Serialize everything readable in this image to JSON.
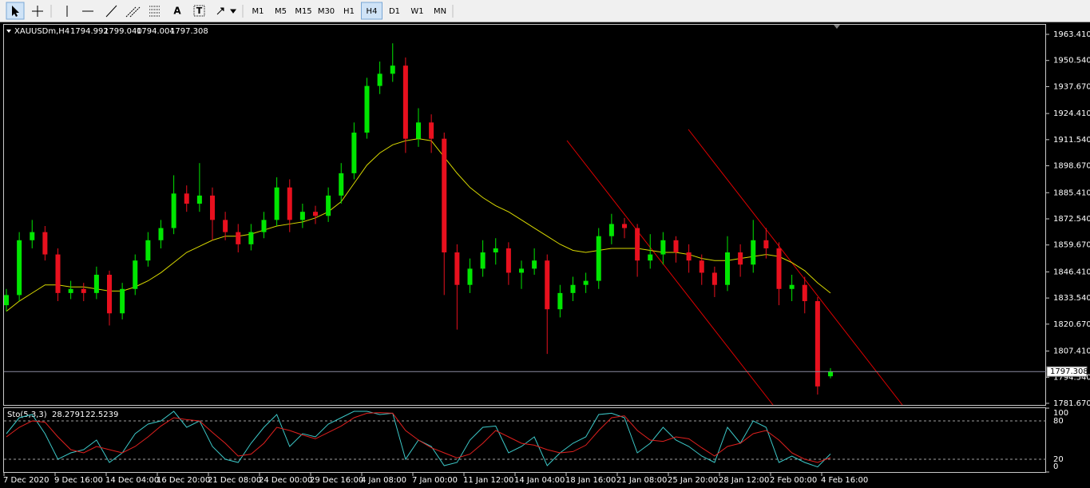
{
  "toolbar": {
    "tools": [
      "A",
      "T"
    ],
    "timeframes": [
      "M1",
      "M5",
      "M15",
      "M30",
      "H1",
      "H4",
      "D1",
      "W1",
      "MN"
    ],
    "active_timeframe": "H4"
  },
  "chart_data": {
    "type": "candlestick",
    "title": "XAUUSDm,H4",
    "quote_labels": [
      "1794.992",
      "1799.040",
      "1794.004",
      "1797.308"
    ],
    "colors": {
      "up": "#00e600",
      "down": "#e8101e",
      "background": "#000000",
      "price_line": "#8a8aa0"
    },
    "candles": [
      [
        1830,
        1838,
        1827,
        1835
      ],
      [
        1835,
        1866,
        1832,
        1862
      ],
      [
        1862,
        1872,
        1858,
        1866
      ],
      [
        1866,
        1869,
        1852,
        1855
      ],
      [
        1855,
        1858,
        1832,
        1836
      ],
      [
        1836,
        1842,
        1833,
        1838
      ],
      [
        1838,
        1841,
        1832,
        1836
      ],
      [
        1836,
        1849,
        1833,
        1845
      ],
      [
        1845,
        1847,
        1820,
        1826
      ],
      [
        1826,
        1841,
        1823,
        1838
      ],
      [
        1838,
        1855,
        1835,
        1852
      ],
      [
        1852,
        1866,
        1849,
        1862
      ],
      [
        1862,
        1872,
        1858,
        1868
      ],
      [
        1868,
        1894,
        1865,
        1885
      ],
      [
        1885,
        1889,
        1876,
        1880
      ],
      [
        1880,
        1900,
        1876,
        1884
      ],
      [
        1884,
        1888,
        1862,
        1872
      ],
      [
        1872,
        1876,
        1862,
        1866
      ],
      [
        1866,
        1870,
        1856,
        1860
      ],
      [
        1860,
        1870,
        1857,
        1866
      ],
      [
        1866,
        1876,
        1863,
        1872
      ],
      [
        1872,
        1893,
        1869,
        1888
      ],
      [
        1888,
        1892,
        1866,
        1872
      ],
      [
        1872,
        1880,
        1868,
        1876
      ],
      [
        1876,
        1879,
        1870,
        1874
      ],
      [
        1874,
        1888,
        1871,
        1884
      ],
      [
        1884,
        1900,
        1880,
        1895
      ],
      [
        1895,
        1920,
        1892,
        1915
      ],
      [
        1915,
        1942,
        1912,
        1938
      ],
      [
        1938,
        1950,
        1934,
        1944
      ],
      [
        1944,
        1959,
        1940,
        1948
      ],
      [
        1948,
        1952,
        1905,
        1912
      ],
      [
        1912,
        1927,
        1908,
        1920
      ],
      [
        1920,
        1924,
        1905,
        1912
      ],
      [
        1912,
        1915,
        1835,
        1856
      ],
      [
        1856,
        1860,
        1818,
        1840
      ],
      [
        1840,
        1853,
        1836,
        1848
      ],
      [
        1848,
        1862,
        1844,
        1856
      ],
      [
        1856,
        1863,
        1850,
        1858
      ],
      [
        1858,
        1861,
        1840,
        1846
      ],
      [
        1846,
        1852,
        1838,
        1848
      ],
      [
        1848,
        1858,
        1845,
        1852
      ],
      [
        1852,
        1855,
        1806,
        1828
      ],
      [
        1828,
        1840,
        1824,
        1836
      ],
      [
        1836,
        1844,
        1832,
        1840
      ],
      [
        1840,
        1846,
        1836,
        1842
      ],
      [
        1842,
        1868,
        1838,
        1864
      ],
      [
        1864,
        1875,
        1860,
        1870
      ],
      [
        1870,
        1873,
        1863,
        1868
      ],
      [
        1868,
        1870,
        1844,
        1852
      ],
      [
        1852,
        1865,
        1848,
        1855
      ],
      [
        1855,
        1866,
        1850,
        1862
      ],
      [
        1862,
        1864,
        1851,
        1856
      ],
      [
        1856,
        1860,
        1846,
        1852
      ],
      [
        1852,
        1855,
        1840,
        1846
      ],
      [
        1846,
        1849,
        1834,
        1840
      ],
      [
        1840,
        1864,
        1837,
        1856
      ],
      [
        1856,
        1860,
        1844,
        1850
      ],
      [
        1850,
        1872,
        1846,
        1862
      ],
      [
        1862,
        1868,
        1853,
        1858
      ],
      [
        1858,
        1861,
        1830,
        1838
      ],
      [
        1838,
        1845,
        1832,
        1840
      ],
      [
        1840,
        1844,
        1826,
        1832
      ],
      [
        1832,
        1834,
        1786,
        1790
      ],
      [
        1794.992,
        1799.04,
        1794.004,
        1797.308
      ]
    ],
    "ma": {
      "color": "#d8d800",
      "values": [
        1827,
        1832,
        1836,
        1840,
        1840,
        1839,
        1839,
        1838,
        1837,
        1837,
        1839,
        1842,
        1846,
        1851,
        1856,
        1859,
        1862,
        1864,
        1864,
        1865,
        1867,
        1869,
        1870,
        1871,
        1873,
        1876,
        1881,
        1890,
        1899,
        1905,
        1909,
        1911,
        1912,
        1911,
        1903,
        1895,
        1888,
        1883,
        1879,
        1876,
        1872,
        1868,
        1864,
        1860,
        1857,
        1856,
        1857,
        1858,
        1858,
        1858,
        1857,
        1856,
        1856,
        1855,
        1853,
        1852,
        1852,
        1853,
        1854,
        1855,
        1854,
        1851,
        1847,
        1841,
        1836
      ]
    },
    "ylim": [
      1780.48,
      1968.13
    ],
    "yticks": [
      {
        "value": 1963.41,
        "label": "1963.410"
      },
      {
        "value": 1950.54,
        "label": "1950.540"
      },
      {
        "value": 1937.67,
        "label": "1937.670"
      },
      {
        "value": 1924.41,
        "label": "1924.410"
      },
      {
        "value": 1911.54,
        "label": "1911.540"
      },
      {
        "value": 1898.67,
        "label": "1898.670"
      },
      {
        "value": 1885.41,
        "label": "1885.410"
      },
      {
        "value": 1872.54,
        "label": "1872.540"
      },
      {
        "value": 1859.67,
        "label": "1859.670"
      },
      {
        "value": 1846.41,
        "label": "1846.410"
      },
      {
        "value": 1833.54,
        "label": "1833.540"
      },
      {
        "value": 1820.67,
        "label": "1820.670"
      },
      {
        "value": 1807.41,
        "label": "1807.410"
      },
      {
        "value": 1794.54,
        "label": "1794.540"
      },
      {
        "value": 1781.67,
        "label": "1781.670"
      }
    ],
    "x_labels": [
      "7 Dec 2020",
      "9 Dec 16:00",
      "14 Dec 04:00",
      "16 Dec 20:00",
      "21 Dec 08:00",
      "24 Dec 00:00",
      "29 Dec 16:00",
      "4 Jan 08:00",
      "7 Jan 00:00",
      "11 Jan 12:00",
      "14 Jan 04:00",
      "18 Jan 16:00",
      "21 Jan 08:00",
      "25 Jan 20:00",
      "28 Jan 12:00",
      "2 Feb 00:00",
      "4 Feb 16:00"
    ],
    "stochastic": {
      "title": "Sto(5,3,3)",
      "ylim": [
        0,
        100
      ],
      "yticks": [
        0,
        20,
        80,
        100
      ],
      "series": [
        {
          "name": "Main",
          "color": "#3cc8c8",
          "values": [
            60,
            85,
            90,
            60,
            20,
            30,
            35,
            50,
            15,
            30,
            60,
            75,
            80,
            95,
            70,
            80,
            40,
            20,
            15,
            45,
            70,
            90,
            40,
            60,
            55,
            75,
            85,
            95,
            95,
            90,
            92,
            20,
            50,
            40,
            10,
            15,
            50,
            70,
            72,
            30,
            40,
            55,
            10,
            30,
            45,
            55,
            90,
            92,
            85,
            30,
            45,
            70,
            50,
            40,
            25,
            15,
            70,
            45,
            80,
            70,
            15,
            25,
            15,
            8,
            28.2791
          ]
        },
        {
          "name": "Signal",
          "color": "#e0201e",
          "values": [
            55,
            70,
            80,
            78,
            55,
            35,
            30,
            40,
            35,
            30,
            40,
            55,
            72,
            85,
            82,
            80,
            62,
            45,
            25,
            28,
            45,
            70,
            65,
            58,
            52,
            62,
            72,
            85,
            92,
            93,
            92,
            65,
            50,
            38,
            30,
            22,
            28,
            45,
            65,
            55,
            45,
            42,
            35,
            30,
            32,
            42,
            65,
            85,
            88,
            65,
            50,
            48,
            55,
            52,
            38,
            25,
            40,
            45,
            60,
            65,
            50,
            30,
            20,
            15,
            22.5239
          ]
        }
      ]
    }
  }
}
